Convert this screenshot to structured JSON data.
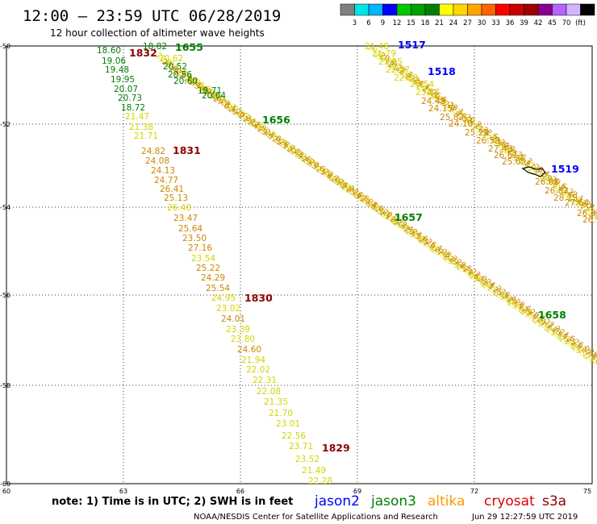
{
  "header": {
    "title": "12:00 – 23:59 UTC 06/28/2019",
    "subtitle": "12 hour collection of altimeter wave heights"
  },
  "scale": {
    "colors": [
      "#808080",
      "#00e6e6",
      "#00b4ff",
      "#0000ff",
      "#00c800",
      "#00a000",
      "#008000",
      "#ffff00",
      "#ffd700",
      "#ffa500",
      "#ff6400",
      "#ff0000",
      "#c80000",
      "#a00000",
      "#8b008b",
      "#b464ff",
      "#d2b4ff",
      "#000000"
    ],
    "labels": [
      "3",
      "6",
      "9",
      "12",
      "15",
      "18",
      "21",
      "24",
      "27",
      "30",
      "33",
      "36",
      "39",
      "42",
      "45",
      "70",
      "(ft)"
    ]
  },
  "axes": {
    "lat_labels": [
      "-50",
      "-52",
      "-54",
      "-56",
      "-58",
      "-60"
    ],
    "lon_labels": [
      "60",
      "63",
      "66",
      "69",
      "72",
      "75"
    ]
  },
  "tracks": [
    {
      "name": "track-1832",
      "pass": "1832",
      "pass_color": "#8b0000",
      "readings": [
        {
          "v": "18.60",
          "c": "#008000"
        },
        {
          "v": "19.06",
          "c": "#008000"
        },
        {
          "v": "19.48",
          "c": "#008000"
        },
        {
          "v": "19.95",
          "c": "#008000"
        },
        {
          "v": "20.07",
          "c": "#008000"
        },
        {
          "v": "20.73",
          "c": "#008000"
        },
        {
          "v": "18.72",
          "c": "#008000"
        },
        {
          "v": "21.47",
          "c": "#d4d400"
        },
        {
          "v": "21.38",
          "c": "#d4d400"
        },
        {
          "v": "21.71",
          "c": "#d4d400"
        }
      ]
    },
    {
      "name": "track-1831",
      "pass": "1831",
      "pass_color": "#8b0000",
      "readings": [
        {
          "v": "24.82",
          "c": "#cc8800"
        },
        {
          "v": "24.08",
          "c": "#cc8800"
        },
        {
          "v": "24.13",
          "c": "#cc8800"
        },
        {
          "v": "24.77",
          "c": "#cc8800"
        },
        {
          "v": "26.41",
          "c": "#cc8800"
        },
        {
          "v": "25.13",
          "c": "#cc8800"
        },
        {
          "v": "26.40",
          "c": "#d4d400"
        },
        {
          "v": "23.47",
          "c": "#cc8800"
        },
        {
          "v": "25.64",
          "c": "#cc8800"
        },
        {
          "v": "23.50",
          "c": "#cc8800"
        },
        {
          "v": "27.16",
          "c": "#cc8800"
        },
        {
          "v": "23.54",
          "c": "#d4d400"
        },
        {
          "v": "25.22",
          "c": "#cc8800"
        },
        {
          "v": "24.29",
          "c": "#cc8800"
        },
        {
          "v": "25.54",
          "c": "#cc8800"
        }
      ]
    },
    {
      "name": "track-1830",
      "pass": "1830",
      "pass_color": "#8b0000",
      "readings": [
        {
          "v": "24.95",
          "c": "#d4d400"
        },
        {
          "v": "23.02",
          "c": "#d4d400"
        },
        {
          "v": "24.01",
          "c": "#cc8800"
        },
        {
          "v": "23.39",
          "c": "#d4d400"
        },
        {
          "v": "23.80",
          "c": "#d4d400"
        },
        {
          "v": "24.60",
          "c": "#cc8800"
        },
        {
          "v": "21.94",
          "c": "#d4d400"
        },
        {
          "v": "22.02",
          "c": "#d4d400"
        },
        {
          "v": "22.31",
          "c": "#d4d400"
        },
        {
          "v": "22.08",
          "c": "#d4d400"
        },
        {
          "v": "21.35",
          "c": "#d4d400"
        },
        {
          "v": "21.70",
          "c": "#d4d400"
        },
        {
          "v": "23.01",
          "c": "#d4d400"
        },
        {
          "v": "22.56",
          "c": "#d4d400"
        }
      ]
    },
    {
      "name": "track-1829",
      "pass": "1829",
      "pass_color": "#8b0000",
      "readings": [
        {
          "v": "23.71",
          "c": "#d4d400"
        },
        {
          "v": "23.52",
          "c": "#d4d400"
        },
        {
          "v": "21.49",
          "c": "#d4d400"
        },
        {
          "v": "22.28",
          "c": "#d4d400"
        }
      ]
    },
    {
      "name": "track-1655",
      "pass": "1655",
      "pass_color": "#008000",
      "readings": [
        {
          "v": "18.82",
          "c": "#008000"
        },
        {
          "v": "20.62",
          "c": "#d4d400"
        },
        {
          "v": "20.52",
          "c": "#008000"
        },
        {
          "v": "20.56",
          "c": "#008000"
        },
        {
          "v": "20.60",
          "c": "#008000"
        },
        {
          "v": "19.71",
          "c": "#008000"
        },
        {
          "v": "20.64",
          "c": "#008000"
        }
      ]
    },
    {
      "name": "track-1656",
      "pass": "1656",
      "pass_color": "#008000",
      "readings": []
    },
    {
      "name": "track-1657",
      "pass": "1657",
      "pass_color": "#008000",
      "readings": []
    },
    {
      "name": "track-1658",
      "pass": "1658",
      "pass_color": "#008000",
      "readings": []
    },
    {
      "name": "track-1517",
      "pass": "1517",
      "pass_color": "#0000ff",
      "readings": [
        {
          "v": "21.48",
          "c": "#d4d400"
        },
        {
          "v": "21.79",
          "c": "#d4d400"
        },
        {
          "v": "21.95",
          "c": "#d4d400"
        },
        {
          "v": "22.27",
          "c": "#d4d400"
        },
        {
          "v": "22.83",
          "c": "#d4d400"
        }
      ]
    },
    {
      "name": "track-1518",
      "pass": "1518",
      "pass_color": "#0000ff",
      "readings": [
        {
          "v": "23.54",
          "c": "#d4d400"
        },
        {
          "v": "23.87",
          "c": "#d4d400"
        },
        {
          "v": "24.45",
          "c": "#cc8800"
        },
        {
          "v": "24.15",
          "c": "#cc8800"
        },
        {
          "v": "25.82",
          "c": "#cc8800"
        },
        {
          "v": "24.10",
          "c": "#cc8800"
        },
        {
          "v": "25.22",
          "c": "#cc8800"
        },
        {
          "v": "26.58",
          "c": "#cc8800"
        },
        {
          "v": "27.48",
          "c": "#cc8800"
        },
        {
          "v": "26.61",
          "c": "#cc8800"
        },
        {
          "v": "25.65",
          "c": "#cc8800"
        }
      ]
    },
    {
      "name": "track-1519",
      "pass": "1519",
      "pass_color": "#0000ff",
      "readings": [
        {
          "v": "26.68",
          "c": "#cc8800"
        },
        {
          "v": "26.81",
          "c": "#cc8800"
        },
        {
          "v": "28.13",
          "c": "#cc8800"
        },
        {
          "v": "27.64",
          "c": "#cc8800"
        },
        {
          "v": "26.33",
          "c": "#cc8800"
        },
        {
          "v": "26.99",
          "c": "#cc8800"
        }
      ]
    }
  ],
  "footer": {
    "note": "note: 1) Time is in UTC; 2) SWH is in feet",
    "legend": [
      {
        "label": "jason2",
        "color": "#0000ff"
      },
      {
        "label": "jason3",
        "color": "#008000"
      },
      {
        "label": "altika",
        "color": "#ff9900"
      },
      {
        "label": "cryosat",
        "color": "#dd0000"
      },
      {
        "label": "s3a",
        "color": "#8b0000"
      }
    ],
    "credit": "NOAA/NESDIS Center for Satellite Applications and Research",
    "timestamp": "Jun 29 12:27:59 UTC 2019"
  }
}
